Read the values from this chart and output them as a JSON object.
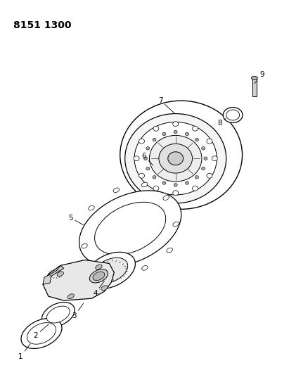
{
  "title": "8151 1300",
  "bg_color": "#ffffff",
  "line_color": "#000000",
  "title_fontsize": 10,
  "label_fontsize": 7.5,
  "figsize": [
    4.11,
    5.33
  ],
  "dpi": 100
}
